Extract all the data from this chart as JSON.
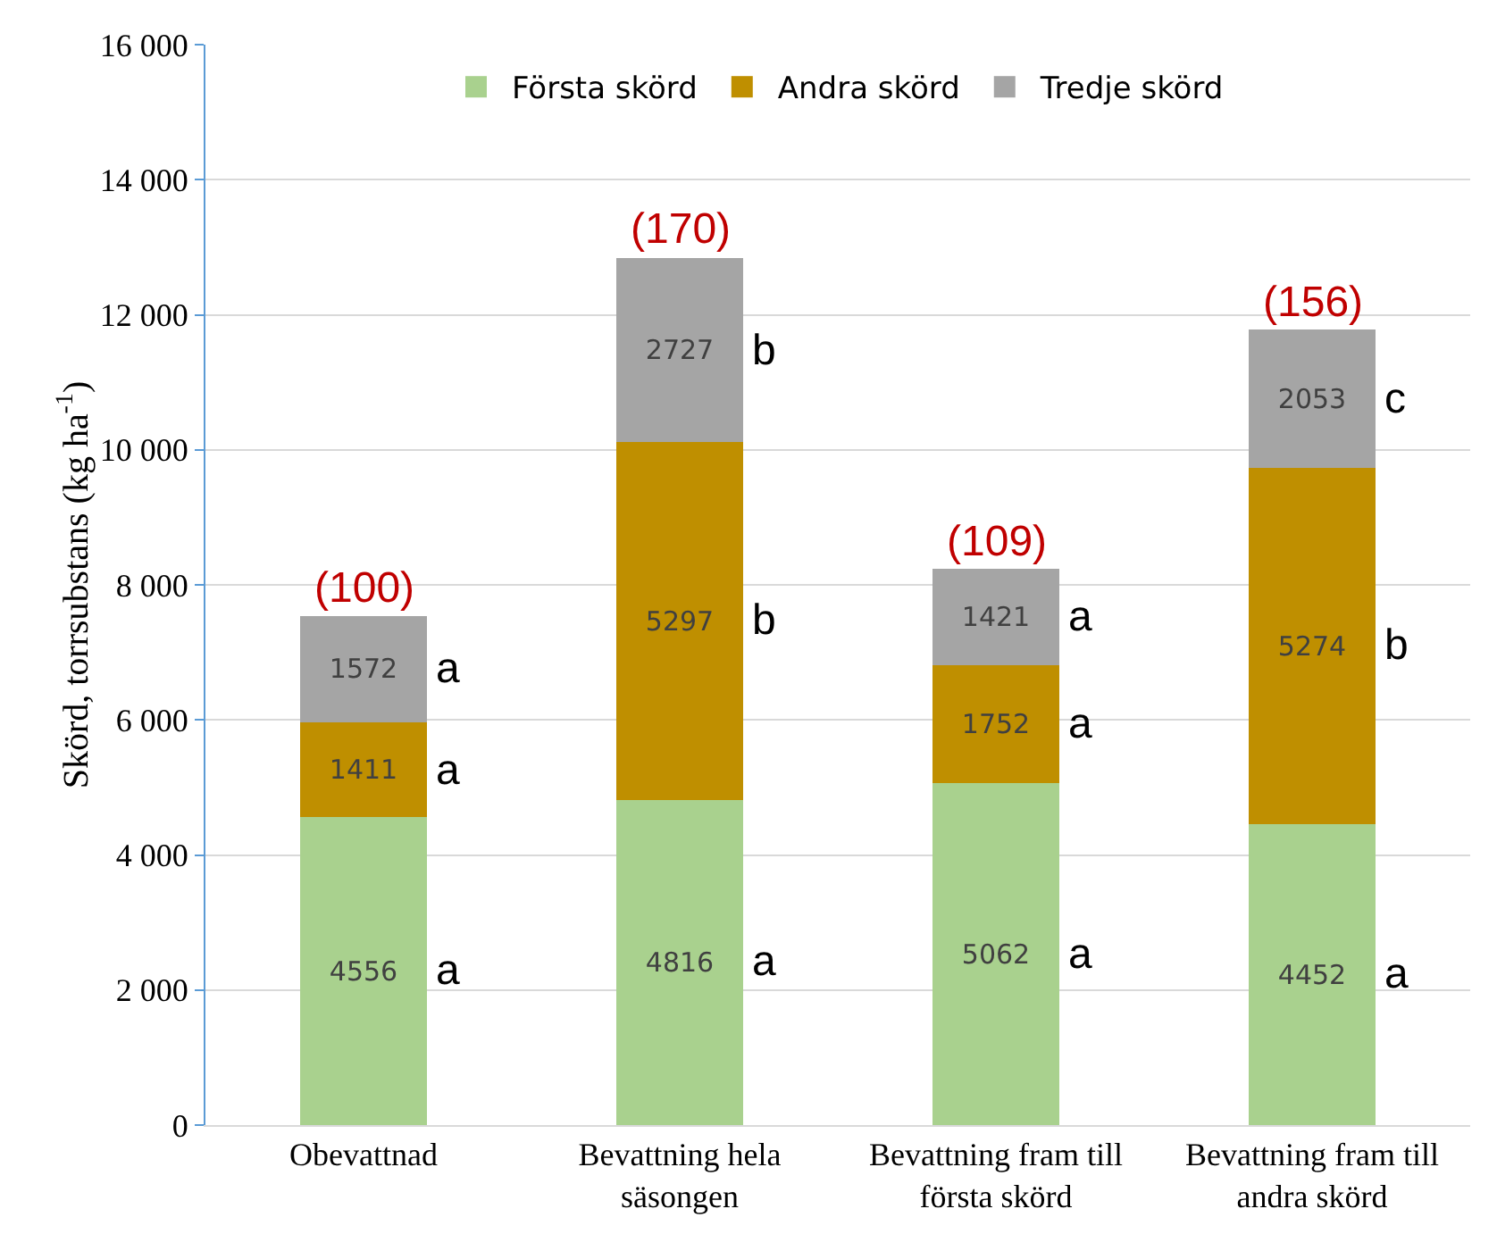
{
  "chart_data": {
    "type": "bar",
    "stacked": true,
    "ylabel": "Skörd, torrsubstans (kg ha$^{-1}$)",
    "categories": [
      "Obevattnad",
      "Bevattning hela\nsäsongen",
      "Bevattning fram till\nförsta skörd",
      "Bevattning fram till\nandra skörd"
    ],
    "series": [
      {
        "name": "Första skörd",
        "color": "#a9d18e",
        "values": [
          4556,
          4816,
          5062,
          4452
        ]
      },
      {
        "name": "Andra skörd",
        "color": "#bf8f00",
        "values": [
          1411,
          5297,
          1752,
          5274
        ]
      },
      {
        "name": "Tredje skörd",
        "color": "#a5a5a5",
        "values": [
          1572,
          2727,
          1421,
          2053
        ]
      }
    ],
    "data_labels": true,
    "ylim": [
      0,
      16000
    ],
    "yticks": [
      {
        "value": 0,
        "label": "0"
      },
      {
        "value": 2000,
        "label": "2 000"
      },
      {
        "value": 4000,
        "label": "4 000"
      },
      {
        "value": 6000,
        "label": "6 000"
      },
      {
        "value": 8000,
        "label": "8 000"
      },
      {
        "value": 10000,
        "label": "10 000"
      },
      {
        "value": 12000,
        "label": "12 000"
      },
      {
        "value": 14000,
        "label": "14 000"
      },
      {
        "value": 16000,
        "label": "16 000"
      }
    ],
    "grid": "y",
    "legend": "top",
    "annotations": [
      {
        "text": "(100)",
        "x": "Obevattnad",
        "y": 7539
      },
      {
        "text": "(170)",
        "x": "Bevattning hela\nsäsongen",
        "y": 12840
      },
      {
        "text": "(109)",
        "x": "Bevattning fram till\nförsta skörd",
        "y": 8235
      },
      {
        "text": "(156)",
        "x": "Bevattning fram till\nandra skörd",
        "y": 11779
      },
      "a",
      "a",
      "a",
      "a",
      "b",
      "b",
      "a",
      "a",
      "a",
      "a",
      "b",
      "c"
    ]
  }
}
